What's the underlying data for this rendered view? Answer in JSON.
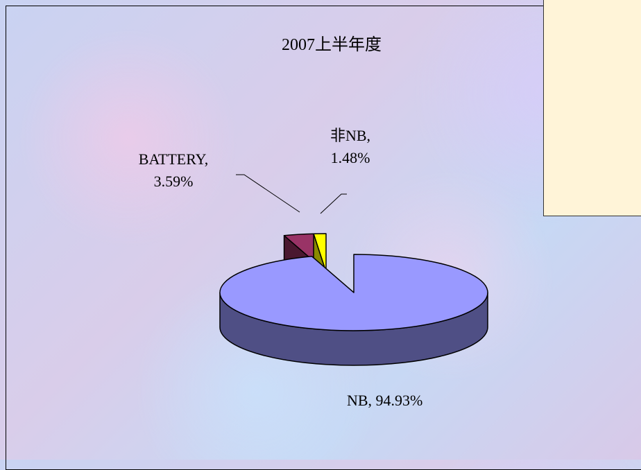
{
  "chart_data": {
    "type": "pie",
    "title": "2007上半年度",
    "categories": [
      "NB",
      "BATTERY",
      "非NB"
    ],
    "values": [
      94.93,
      3.59,
      1.48
    ],
    "value_labels": [
      "NB, 94.93%",
      "BATTERY, 3.59%",
      "非NB, 1.48%"
    ],
    "colors": [
      "#9999ff",
      "#993366",
      "#ffff00"
    ],
    "side_colors": [
      "#4f4f85",
      "#4a1830",
      "#8a8a00"
    ]
  }
}
